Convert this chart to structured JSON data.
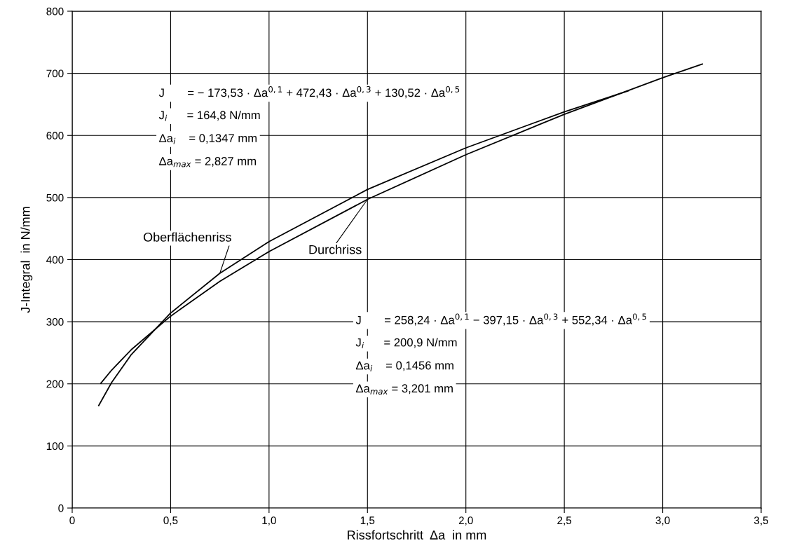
{
  "chart_data": {
    "type": "line",
    "xlabel": "Rissfortschritt  Δa  in mm",
    "ylabel": "J-Integral  in N/mm",
    "xlim": [
      0,
      3.5
    ],
    "ylim": [
      0,
      800
    ],
    "xticks": [
      0,
      {
        "value": 0.5,
        "label": "0,5"
      },
      {
        "value": 1.0,
        "label": "1,0"
      },
      {
        "value": 1.5,
        "label": "1,5"
      },
      {
        "value": 2.0,
        "label": "2,0"
      },
      {
        "value": 2.5,
        "label": "2,5"
      },
      {
        "value": 3.0,
        "label": "3,0"
      },
      {
        "value": 3.5,
        "label": "3,5"
      }
    ],
    "yticks": [
      0,
      100,
      200,
      300,
      400,
      500,
      600,
      700,
      800
    ],
    "grid": true,
    "legend": false,
    "marker": "none",
    "line_style": "solid",
    "series": [
      {
        "name": "Oberflächenriss",
        "color": "#000000",
        "x": [
          0.1347,
          0.2,
          0.3,
          0.5,
          0.75,
          1.0,
          1.5,
          2.0,
          2.5,
          2.827
        ],
        "values": [
          165,
          202,
          247,
          314,
          378,
          429,
          513,
          580,
          638,
          672
        ]
      },
      {
        "name": "Durchriss",
        "color": "#000000",
        "x": [
          0.1456,
          0.2,
          0.3,
          0.5,
          0.75,
          1.0,
          1.5,
          2.0,
          2.5,
          3.0,
          3.201
        ],
        "values": [
          201,
          222,
          255,
          309,
          365,
          413,
          497,
          569,
          634,
          693,
          715
        ]
      }
    ],
    "annotations": [
      "J       = − 173,53 · Δa$^{0,1}$ + 472,43 · Δa$^{0,3}$ + 130,52 · Δa$^{0,5}$",
      "J$_{i}$      = 164,8 N/mm",
      "Δa$_{i}$    = 0,1347 mm",
      "Δa$_{max}$ = 2,827 mm",
      "J       = 258,24 · Δa$^{0,1}$ − 397,15 · Δa$^{0,3}$ + 552,34 · Δa$^{0,5}$",
      "J$_{i}$      = 200,9 N/mm",
      "Δa$_{i}$    = 0,1456 mm",
      "Δa$_{max}$ = 3,201 mm"
    ]
  }
}
